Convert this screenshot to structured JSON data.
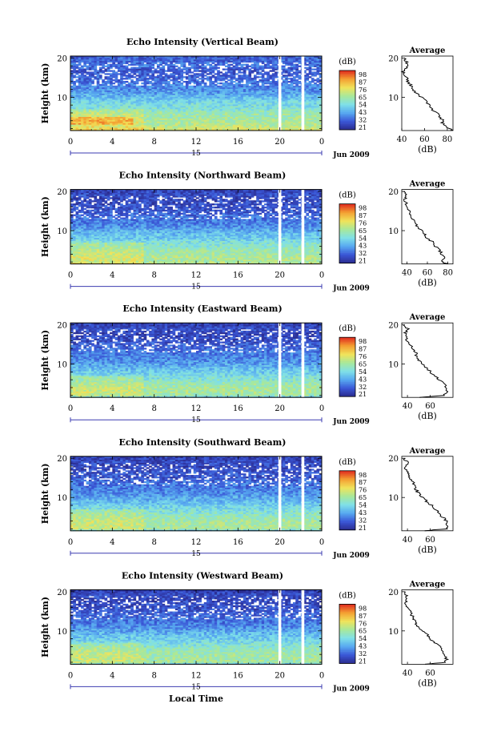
{
  "figure": {
    "xlabel": "Local Time",
    "date_label": "Jun 2009",
    "day_marker": "15",
    "colorbar_unit": "(dB)",
    "ylabel": "Height (km)",
    "profile_title": "Average",
    "profile_xlabel": "(dB)"
  },
  "chart_data": [
    {
      "type": "heatmap",
      "title": "Echo Intensity (Vertical Beam)",
      "xlabel": "",
      "ylabel": "Height (km)",
      "x_ticks": [
        "0",
        "4",
        "8",
        "12",
        "16",
        "20",
        "0"
      ],
      "y_ticks": [
        "10",
        "20"
      ],
      "ylim": [
        1.5,
        20.5
      ],
      "xlim": [
        0,
        24
      ],
      "colorbar": {
        "unit": "(dB)",
        "ticks": [
          "98",
          "87",
          "76",
          "65",
          "54",
          "43",
          "32",
          "21"
        ],
        "range": [
          21,
          98
        ]
      },
      "data_gaps_hours": [
        20.0,
        22.2
      ],
      "profile": {
        "title": "Average",
        "xlabel": "(dB)",
        "x_ticks": [
          "40",
          "60",
          "80"
        ],
        "xlim": [
          40,
          85
        ],
        "y_ticks": [
          "10",
          "20"
        ],
        "heights": [
          1.5,
          2,
          3,
          4,
          5,
          6,
          7,
          8,
          9,
          10,
          11,
          12,
          13,
          14,
          15,
          16,
          17,
          18,
          19,
          20
        ],
        "values": [
          84,
          82,
          76,
          76,
          73,
          72,
          66,
          64,
          62,
          57,
          53,
          50,
          48,
          45,
          44,
          42,
          41,
          46,
          44,
          43
        ]
      }
    },
    {
      "type": "heatmap",
      "title": "Echo Intensity (Northward Beam)",
      "xlabel": "",
      "ylabel": "Height (km)",
      "x_ticks": [
        "0",
        "4",
        "8",
        "12",
        "16",
        "20",
        "0"
      ],
      "y_ticks": [
        "10",
        "20"
      ],
      "ylim": [
        1.5,
        20.5
      ],
      "xlim": [
        0,
        24
      ],
      "colorbar": {
        "unit": "(dB)",
        "ticks": [
          "98",
          "87",
          "76",
          "65",
          "54",
          "43",
          "32",
          "21"
        ],
        "range": [
          21,
          98
        ]
      },
      "data_gaps_hours": [
        20.0,
        22.2
      ],
      "profile": {
        "title": "Average",
        "xlabel": "(dB)",
        "x_ticks": [
          "40",
          "60",
          "80"
        ],
        "xlim": [
          35,
          85
        ],
        "y_ticks": [
          "10",
          "20"
        ],
        "heights": [
          1.5,
          2,
          3,
          4,
          5,
          6,
          7,
          8,
          9,
          10,
          11,
          12,
          13,
          14,
          15,
          16,
          17,
          18,
          19,
          20
        ],
        "values": [
          80,
          75,
          76,
          74,
          72,
          68,
          66,
          60,
          58,
          55,
          50,
          48,
          46,
          44,
          42,
          40,
          39,
          38,
          40,
          38
        ]
      }
    },
    {
      "type": "heatmap",
      "title": "Echo Intensity (Eastward Beam)",
      "xlabel": "",
      "ylabel": "Height (km)",
      "x_ticks": [
        "0",
        "4",
        "8",
        "12",
        "16",
        "20",
        "0"
      ],
      "y_ticks": [
        "10",
        "20"
      ],
      "ylim": [
        1.5,
        20.5
      ],
      "xlim": [
        0,
        24
      ],
      "colorbar": {
        "unit": "(dB)",
        "ticks": [
          "98",
          "87",
          "76",
          "65",
          "54",
          "43",
          "32",
          "21"
        ],
        "range": [
          21,
          98
        ]
      },
      "data_gaps_hours": [
        20.0,
        22.2
      ],
      "profile": {
        "title": "Average",
        "xlabel": "(dB)",
        "x_ticks": [
          "40",
          "60"
        ],
        "xlim": [
          35,
          80
        ],
        "y_ticks": [
          "10",
          "20"
        ],
        "heights": [
          1.5,
          2,
          3,
          4,
          5,
          6,
          7,
          8,
          9,
          10,
          11,
          12,
          13,
          14,
          15,
          16,
          17,
          18,
          19,
          20
        ],
        "values": [
          52,
          72,
          75,
          74,
          72,
          67,
          64,
          60,
          57,
          53,
          50,
          48,
          47,
          44,
          42,
          40,
          39,
          38,
          40,
          37
        ]
      }
    },
    {
      "type": "heatmap",
      "title": "Echo Intensity (Southward Beam)",
      "xlabel": "",
      "ylabel": "Height (km)",
      "x_ticks": [
        "0",
        "4",
        "8",
        "12",
        "16",
        "20",
        "0"
      ],
      "y_ticks": [
        "10",
        "20"
      ],
      "ylim": [
        1.5,
        20.5
      ],
      "xlim": [
        0,
        24
      ],
      "colorbar": {
        "unit": "(dB)",
        "ticks": [
          "98",
          "87",
          "76",
          "65",
          "54",
          "43",
          "32",
          "21"
        ],
        "range": [
          21,
          98
        ]
      },
      "data_gaps_hours": [
        20.0,
        22.2
      ],
      "profile": {
        "title": "Average",
        "xlabel": "(dB)",
        "x_ticks": [
          "40",
          "60"
        ],
        "xlim": [
          35,
          80
        ],
        "y_ticks": [
          "10",
          "20"
        ],
        "heights": [
          1.5,
          2,
          3,
          4,
          5,
          6,
          7,
          8,
          9,
          10,
          11,
          12,
          13,
          14,
          15,
          16,
          17,
          18,
          19,
          20
        ],
        "values": [
          54,
          74,
          75,
          74,
          71,
          68,
          64,
          61,
          57,
          54,
          50,
          48,
          46,
          45,
          41,
          42,
          39,
          38,
          40,
          37
        ]
      }
    },
    {
      "type": "heatmap",
      "title": "Echo Intensity (Westward Beam)",
      "xlabel": "Local Time",
      "ylabel": "Height (km)",
      "x_ticks": [
        "0",
        "4",
        "8",
        "12",
        "16",
        "20",
        "0"
      ],
      "y_ticks": [
        "10",
        "20"
      ],
      "ylim": [
        1.5,
        20.5
      ],
      "xlim": [
        0,
        24
      ],
      "colorbar": {
        "unit": "(dB)",
        "ticks": [
          "98",
          "87",
          "76",
          "65",
          "54",
          "43",
          "32",
          "21"
        ],
        "range": [
          21,
          98
        ]
      },
      "data_gaps_hours": [
        20.0,
        22.2
      ],
      "profile": {
        "title": "Average",
        "xlabel": "(dB)",
        "x_ticks": [
          "40",
          "60"
        ],
        "xlim": [
          35,
          80
        ],
        "y_ticks": [
          "10",
          "20"
        ],
        "heights": [
          1.5,
          2,
          3,
          4,
          5,
          6,
          7,
          8,
          9,
          10,
          11,
          12,
          13,
          14,
          15,
          16,
          17,
          18,
          19,
          20
        ],
        "values": [
          55,
          74,
          74,
          73,
          71,
          68,
          64,
          60,
          58,
          54,
          50,
          47,
          46,
          44,
          42,
          40,
          39,
          38,
          40,
          37
        ]
      }
    }
  ]
}
